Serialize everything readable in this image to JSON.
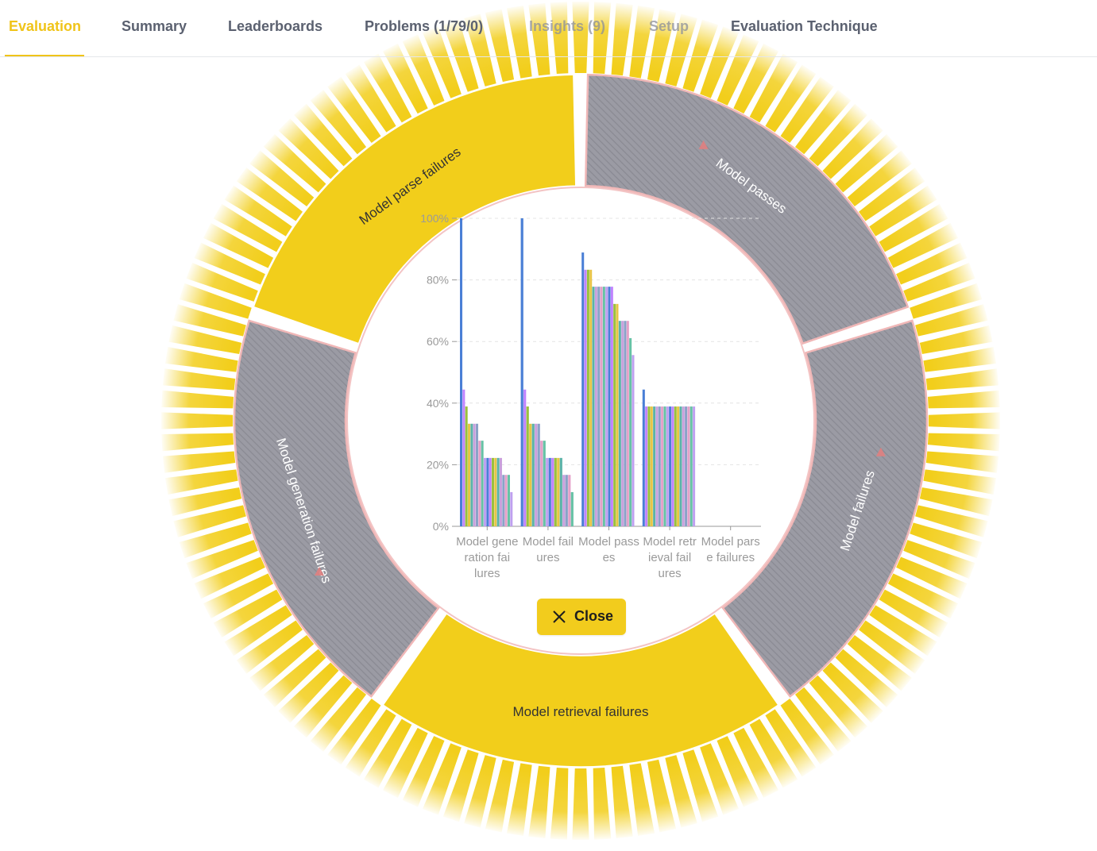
{
  "tabs": [
    {
      "label": "Evaluation"
    },
    {
      "label": "Summary"
    },
    {
      "label": "Leaderboards"
    },
    {
      "label": "Problems (1/79/0)"
    },
    {
      "label": "Insights (9)"
    },
    {
      "label": "Setup"
    },
    {
      "label": "Evaluation Technique"
    }
  ],
  "active_tab": "Evaluation",
  "close_button": {
    "label": "Close",
    "icon": "close-icon"
  },
  "colors": {
    "accent": "#f2cc1d",
    "segment_yellow": "#f2ce1b",
    "segment_gray": "#9a9aa3",
    "segment_border": "#f0b7b7",
    "tab_active": "#f0c419",
    "tab_text": "#5b6170"
  },
  "ring": {
    "segments": [
      {
        "label": "Model passes",
        "style": "hatched"
      },
      {
        "label": "Model failures",
        "style": "hatched"
      },
      {
        "label": "Model retrieval failures",
        "style": "solid"
      },
      {
        "label": "Model generation failures",
        "style": "hatched"
      },
      {
        "label": "Model parse failures",
        "style": "solid"
      }
    ]
  },
  "chart_data": {
    "type": "bar",
    "categories": [
      "Model generation failures",
      "Model failures",
      "Model passes",
      "Model retrieval failures",
      "Model parse failures"
    ],
    "category_lines": [
      [
        "Model gene",
        "ration fai",
        "lures"
      ],
      [
        "Model fail",
        "ures"
      ],
      [
        "Model pass",
        "es"
      ],
      [
        "Model retr",
        "ieval fail",
        "ures"
      ],
      [
        "Model pars",
        "e failures"
      ]
    ],
    "y_ticks": [
      "0%",
      "20%",
      "40%",
      "60%",
      "80%",
      "100%"
    ],
    "ylim": [
      0,
      100
    ],
    "y_unit": "%",
    "grid": "dashed horizontal",
    "groups": [
      [
        100,
        44.4,
        38.9,
        33.3,
        33.3,
        33.3,
        33.3,
        27.8,
        27.8,
        22.2,
        22.2,
        22.2,
        22.2,
        22.2,
        22.2,
        22.2,
        16.7,
        16.7,
        16.7,
        11.1
      ],
      [
        100,
        44.4,
        38.9,
        33.3,
        33.3,
        33.3,
        33.3,
        27.8,
        27.8,
        22.2,
        22.2,
        22.2,
        22.2,
        22.2,
        22.2,
        16.7,
        16.7,
        16.7,
        11.1
      ],
      [
        88.9,
        83.3,
        83.3,
        83.3,
        77.8,
        77.8,
        77.8,
        77.8,
        77.8,
        77.8,
        77.8,
        77.8,
        72.2,
        72.2,
        66.7,
        66.7,
        66.7,
        66.7,
        61.1,
        55.6
      ],
      [
        44.4,
        38.9,
        38.9,
        38.9,
        38.9,
        38.9,
        38.9,
        38.9,
        38.9,
        38.9,
        38.9,
        38.9,
        38.9,
        38.9,
        38.9,
        38.9,
        38.9,
        38.9,
        38.9,
        38.9
      ],
      []
    ],
    "series_colors": [
      "#4a7fd6",
      "#c083ff",
      "#9ac13c",
      "#e8c547",
      "#5bb3a8",
      "#c9a0dc",
      "#8aa2c8",
      "#e5a0c8",
      "#66c2a5",
      "#bfa0f0"
    ]
  }
}
